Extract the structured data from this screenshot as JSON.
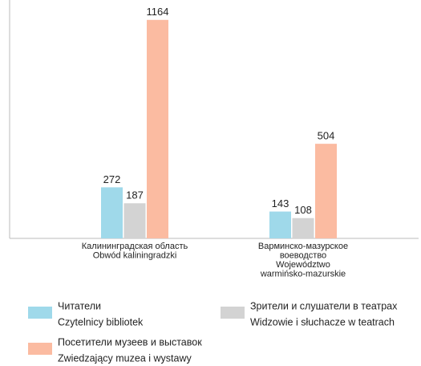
{
  "chart_data": {
    "type": "bar",
    "categories": [
      [
        "Калининградская область",
        "Obwód kaliningradzki"
      ],
      [
        "Варминско-мазурское",
        "воеводство",
        "Województwo",
        "warmińsko-mazurskie"
      ]
    ],
    "series": [
      {
        "name": [
          "Читатели",
          "Czytelnicy bibliotek"
        ],
        "color": "#9fd9ea",
        "values": [
          272,
          143
        ]
      },
      {
        "name": [
          "Зрители и слушатели в театрах",
          "Widzowie i słuchacze w teatrach"
        ],
        "color": "#d3d3d3",
        "values": [
          187,
          108
        ]
      },
      {
        "name": [
          "Посетители музеев и выставок",
          "Zwiedzający muzea i wystawy"
        ],
        "color": "#fbbba1",
        "values": [
          1164,
          504
        ]
      }
    ],
    "ylim": [
      0,
      1270
    ]
  }
}
